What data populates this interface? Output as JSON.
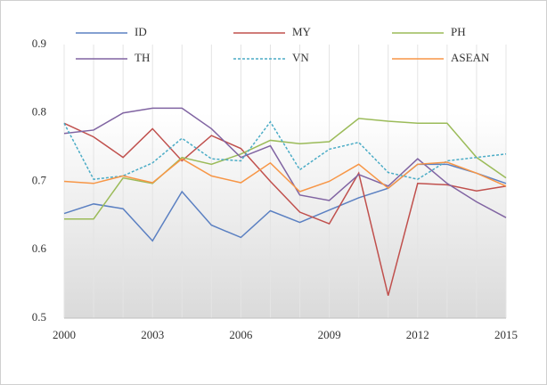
{
  "chart_data": {
    "type": "line",
    "x": [
      2000,
      2001,
      2002,
      2003,
      2004,
      2005,
      2006,
      2007,
      2008,
      2009,
      2010,
      2011,
      2012,
      2013,
      2014,
      2015
    ],
    "xlim": [
      2000,
      2015
    ],
    "xticks": [
      2000,
      2003,
      2006,
      2009,
      2012,
      2015
    ],
    "ylim": [
      0.5,
      0.9
    ],
    "yticks": [
      0.5,
      0.6,
      0.7,
      0.8,
      0.9
    ],
    "grid": true,
    "legend": "top",
    "series": [
      {
        "name": "ID",
        "color": "#5b80c2",
        "dashed": false,
        "values": [
          0.653,
          0.667,
          0.66,
          0.613,
          0.685,
          0.636,
          0.618,
          0.657,
          0.64,
          0.658,
          0.676,
          0.69,
          0.725,
          0.725,
          0.712,
          0.697
        ]
      },
      {
        "name": "MY",
        "color": "#c0504d",
        "dashed": false,
        "values": [
          0.785,
          0.765,
          0.735,
          0.777,
          0.73,
          0.767,
          0.748,
          0.7,
          0.655,
          0.638,
          0.712,
          0.533,
          0.697,
          0.695,
          0.686,
          0.693
        ]
      },
      {
        "name": "PH",
        "color": "#9bbb59",
        "dashed": false,
        "values": [
          0.645,
          0.645,
          0.705,
          0.697,
          0.735,
          0.725,
          0.74,
          0.76,
          0.755,
          0.758,
          0.792,
          0.788,
          0.785,
          0.785,
          0.735,
          0.705
        ]
      },
      {
        "name": "TH",
        "color": "#8064a2",
        "dashed": false,
        "values": [
          0.77,
          0.775,
          0.8,
          0.807,
          0.807,
          0.777,
          0.735,
          0.752,
          0.68,
          0.672,
          0.71,
          0.693,
          0.733,
          0.697,
          0.67,
          0.647
        ]
      },
      {
        "name": "VN",
        "color": "#4bacc6",
        "dashed": true,
        "values": [
          0.785,
          0.703,
          0.708,
          0.727,
          0.763,
          0.733,
          0.73,
          0.787,
          0.717,
          0.747,
          0.757,
          0.713,
          0.703,
          0.73,
          0.735,
          0.74
        ]
      },
      {
        "name": "ASEAN",
        "color": "#f79646",
        "dashed": false,
        "values": [
          0.7,
          0.697,
          0.708,
          0.698,
          0.733,
          0.708,
          0.698,
          0.727,
          0.685,
          0.7,
          0.725,
          0.69,
          0.725,
          0.728,
          0.712,
          0.693
        ]
      }
    ]
  }
}
